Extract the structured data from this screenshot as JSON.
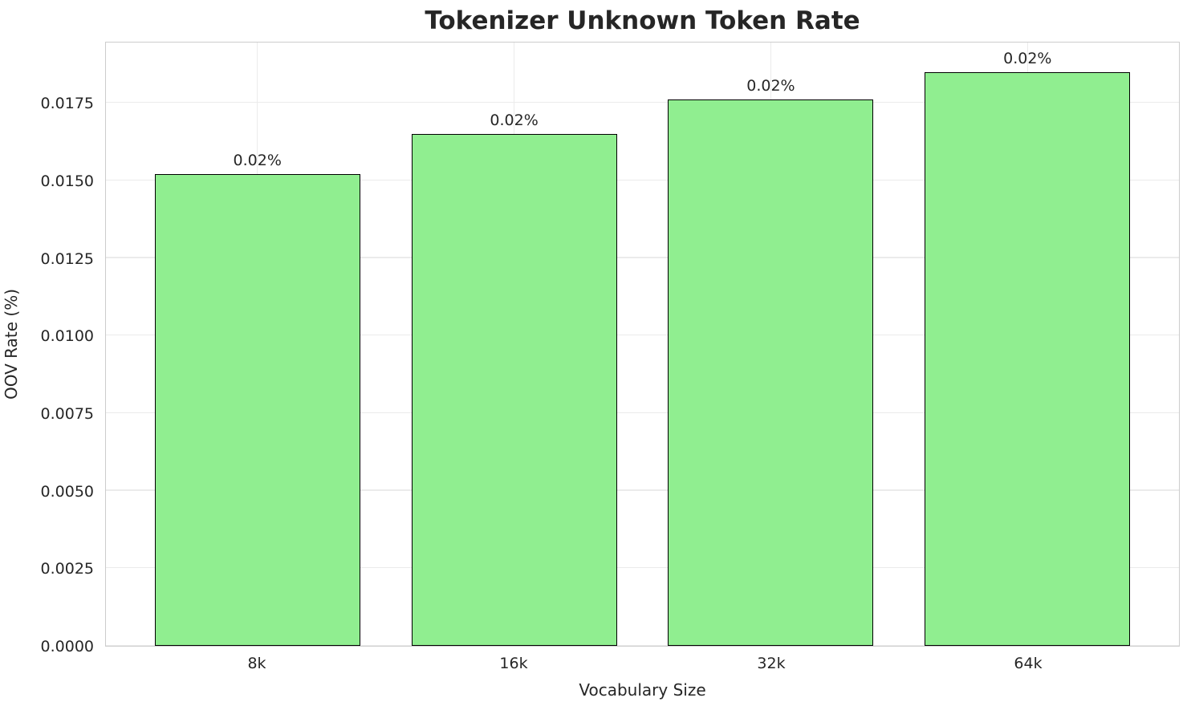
{
  "chart_data": {
    "type": "bar",
    "title": "Tokenizer Unknown Token Rate",
    "xlabel": "Vocabulary Size",
    "ylabel": "OOV Rate (%)",
    "categories": [
      "8k",
      "16k",
      "32k",
      "64k"
    ],
    "values": [
      0.0152,
      0.0165,
      0.0176,
      0.0185
    ],
    "bar_labels": [
      "0.02%",
      "0.02%",
      "0.02%",
      "0.02%"
    ],
    "ytick_values": [
      0.0,
      0.0025,
      0.005,
      0.0075,
      0.01,
      0.0125,
      0.015,
      0.0175
    ],
    "ytick_labels": [
      "0.0000",
      "0.0025",
      "0.0050",
      "0.0075",
      "0.0100",
      "0.0125",
      "0.0150",
      "0.0175"
    ],
    "ylim": [
      0,
      0.0195
    ],
    "grid": "both",
    "legend_position": "none",
    "colors": {
      "bar_fill": "#90EE90",
      "bar_edge": "#000000",
      "grid": "#ebebeb",
      "spine": "#cccccc",
      "text": "#262626",
      "background": "#ffffff"
    }
  }
}
